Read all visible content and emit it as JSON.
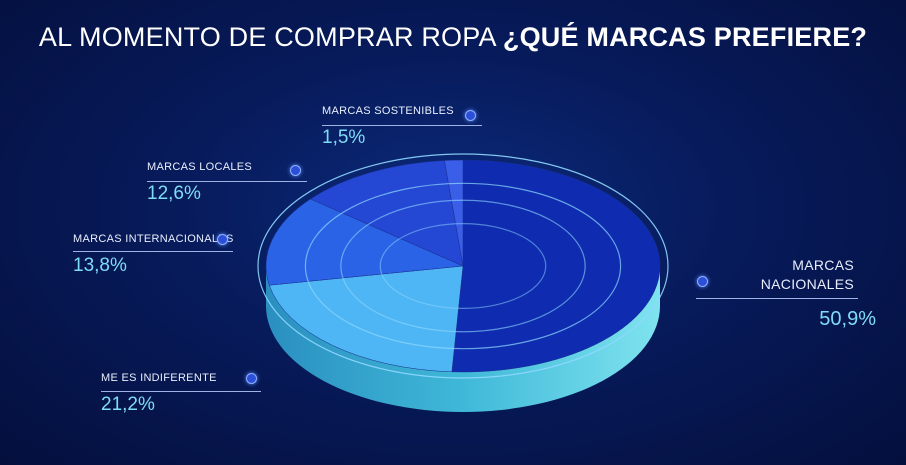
{
  "title": {
    "part1": "AL MOMENTO DE COMPRAR ROPA ",
    "part2": "¿QUÉ MARCAS PREFIERE?"
  },
  "labels": {
    "sostenibles": {
      "name": "MARCAS SOSTENIBLES",
      "pct": "1,5%"
    },
    "locales": {
      "name": "MARCAS LOCALES",
      "pct": "12,6%"
    },
    "internacionales": {
      "name": "MARCAS INTERNACIONALES",
      "pct": "13,8%"
    },
    "indiferente": {
      "name": "ME ES INDIFERENTE",
      "pct": "21,2%"
    },
    "nacionales": {
      "name_line1": "MARCAS",
      "name_line2": "NACIONALES",
      "pct": "50,9%"
    }
  },
  "chart_data": {
    "type": "pie",
    "title": "AL MOMENTO DE COMPRAR ROPA ¿QUÉ MARCAS PREFIERE?",
    "categories": [
      "MARCAS NACIONALES",
      "ME ES INDIFERENTE",
      "MARCAS INTERNACIONALES",
      "MARCAS LOCALES",
      "MARCAS SOSTENIBLES"
    ],
    "values": [
      50.9,
      21.2,
      13.8,
      12.6,
      1.5
    ],
    "colors": [
      "#0f2cb0",
      "#4fb6f5",
      "#2b63e6",
      "#2447d4",
      "#3a5ee8"
    ],
    "side_color": "#3fb8d8"
  }
}
